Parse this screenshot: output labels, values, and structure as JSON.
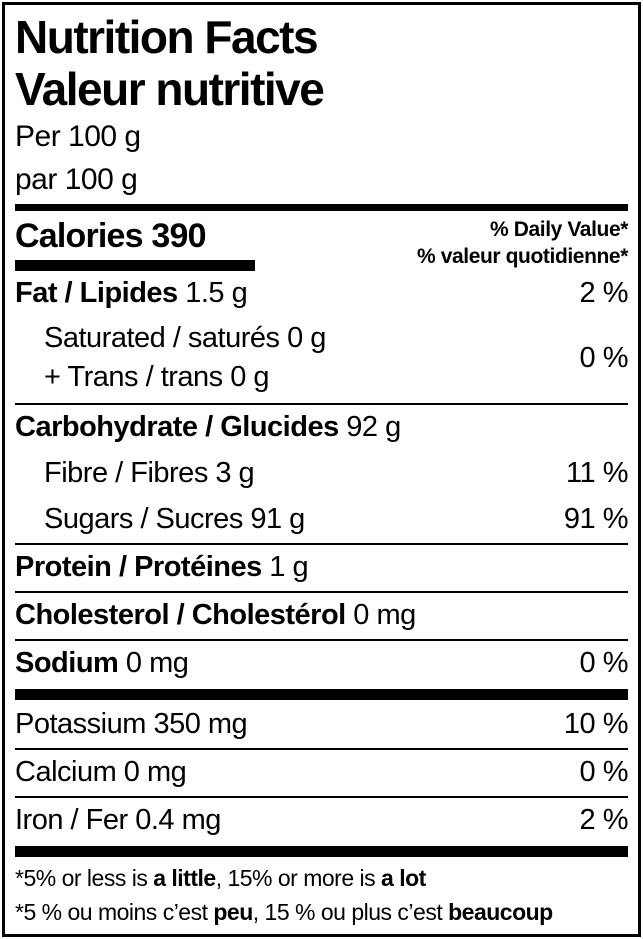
{
  "colors": {
    "ink": "#000000",
    "background": "#ffffff"
  },
  "header": {
    "title_en": "Nutrition Facts",
    "title_fr": "Valeur nutritive",
    "serving_en": "Per 100 g",
    "serving_fr": "par 100 g"
  },
  "calories": {
    "label": "Calories 390",
    "dv_header_en": "% Daily Value*",
    "dv_header_fr": "% valeur quotidienne*"
  },
  "nutrients": [
    {
      "name": "fat",
      "type": "main",
      "bold": "Fat / Lipides",
      "rest": " 1.5 g",
      "percent": "2 %",
      "rule_after": "none"
    },
    {
      "name": "saturated-trans",
      "type": "double",
      "line1": "Saturated / saturés 0 g",
      "line2": "+ Trans / trans 0 g",
      "percent": "0 %",
      "rule_after": "thin"
    },
    {
      "name": "carbohydrate",
      "type": "main",
      "bold": "Carbohydrate / Glucides",
      "rest": " 92 g",
      "percent": "",
      "rule_after": "none"
    },
    {
      "name": "fibre",
      "type": "sub",
      "text": "Fibre / Fibres 3 g",
      "percent": "11 %",
      "rule_after": "none"
    },
    {
      "name": "sugars",
      "type": "sub",
      "text": "Sugars / Sucres 91 g",
      "percent": "91 %",
      "rule_after": "thin"
    },
    {
      "name": "protein",
      "type": "main",
      "bold": "Protein / Protéines",
      "rest": " 1 g",
      "percent": "",
      "rule_after": "thin"
    },
    {
      "name": "cholesterol",
      "type": "main",
      "bold": "Cholesterol / Cholestérol",
      "rest": " 0 mg",
      "percent": "",
      "rule_after": "thin"
    },
    {
      "name": "sodium",
      "type": "main",
      "bold": "Sodium",
      "rest": " 0 mg",
      "percent": "0 %",
      "rule_after": "thick"
    },
    {
      "name": "potassium",
      "type": "plain",
      "text": "Potassium 350 mg",
      "percent": "10 %",
      "rule_after": "thin"
    },
    {
      "name": "calcium",
      "type": "plain",
      "text": "Calcium 0 mg",
      "percent": "0 %",
      "rule_after": "thin"
    },
    {
      "name": "iron",
      "type": "plain",
      "text": "Iron / Fer 0.4 mg",
      "percent": "2 %",
      "rule_after": "thick"
    }
  ],
  "footnotes": {
    "en": {
      "segments": [
        {
          "text": "*5% or less is ",
          "bold": false
        },
        {
          "text": "a little",
          "bold": true
        },
        {
          "text": ", 15% or more is ",
          "bold": false
        },
        {
          "text": "a lot",
          "bold": true
        }
      ]
    },
    "fr": {
      "segments": [
        {
          "text": "*5 % ou moins c’est ",
          "bold": false
        },
        {
          "text": "peu",
          "bold": true
        },
        {
          "text": ", 15 % ou plus c’est ",
          "bold": false
        },
        {
          "text": "beaucoup",
          "bold": true
        }
      ]
    }
  }
}
